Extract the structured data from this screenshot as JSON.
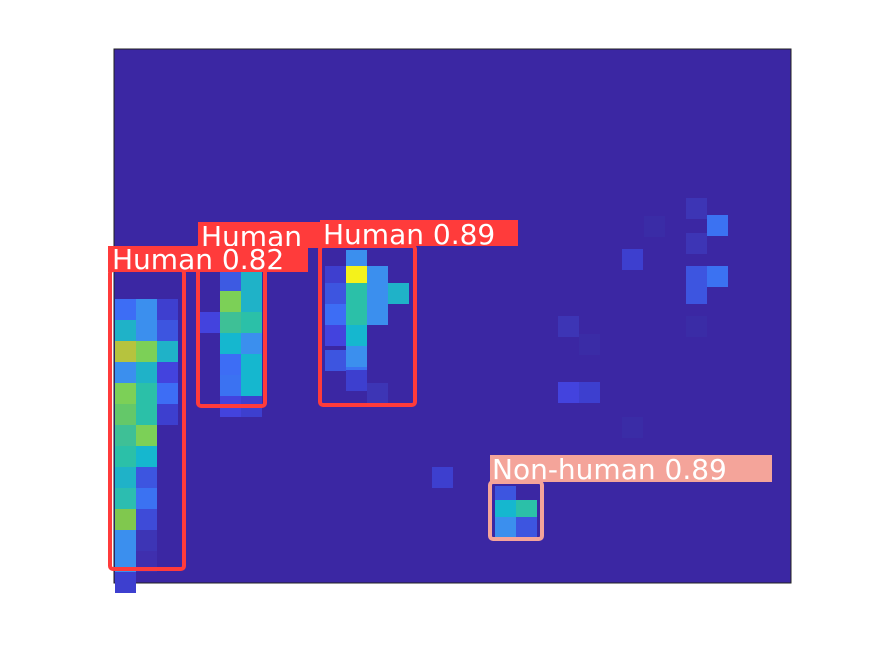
{
  "colors": {
    "background": "#3b27a3",
    "human": "#ff3b3b",
    "non_human": "#f4a49a",
    "label_text": "#ffffff"
  },
  "detections": [
    {
      "id": "human-1",
      "class": "human",
      "label": "Human 0.82",
      "confidence": 0.82
    },
    {
      "id": "human-2",
      "class": "human",
      "label": "Human",
      "confidence": null
    },
    {
      "id": "human-3",
      "class": "human",
      "label": "Human 0.89",
      "confidence": 0.89
    },
    {
      "id": "non-human-1",
      "class": "non_human",
      "label": "Non-human 0.89",
      "confidence": 0.89
    }
  ]
}
